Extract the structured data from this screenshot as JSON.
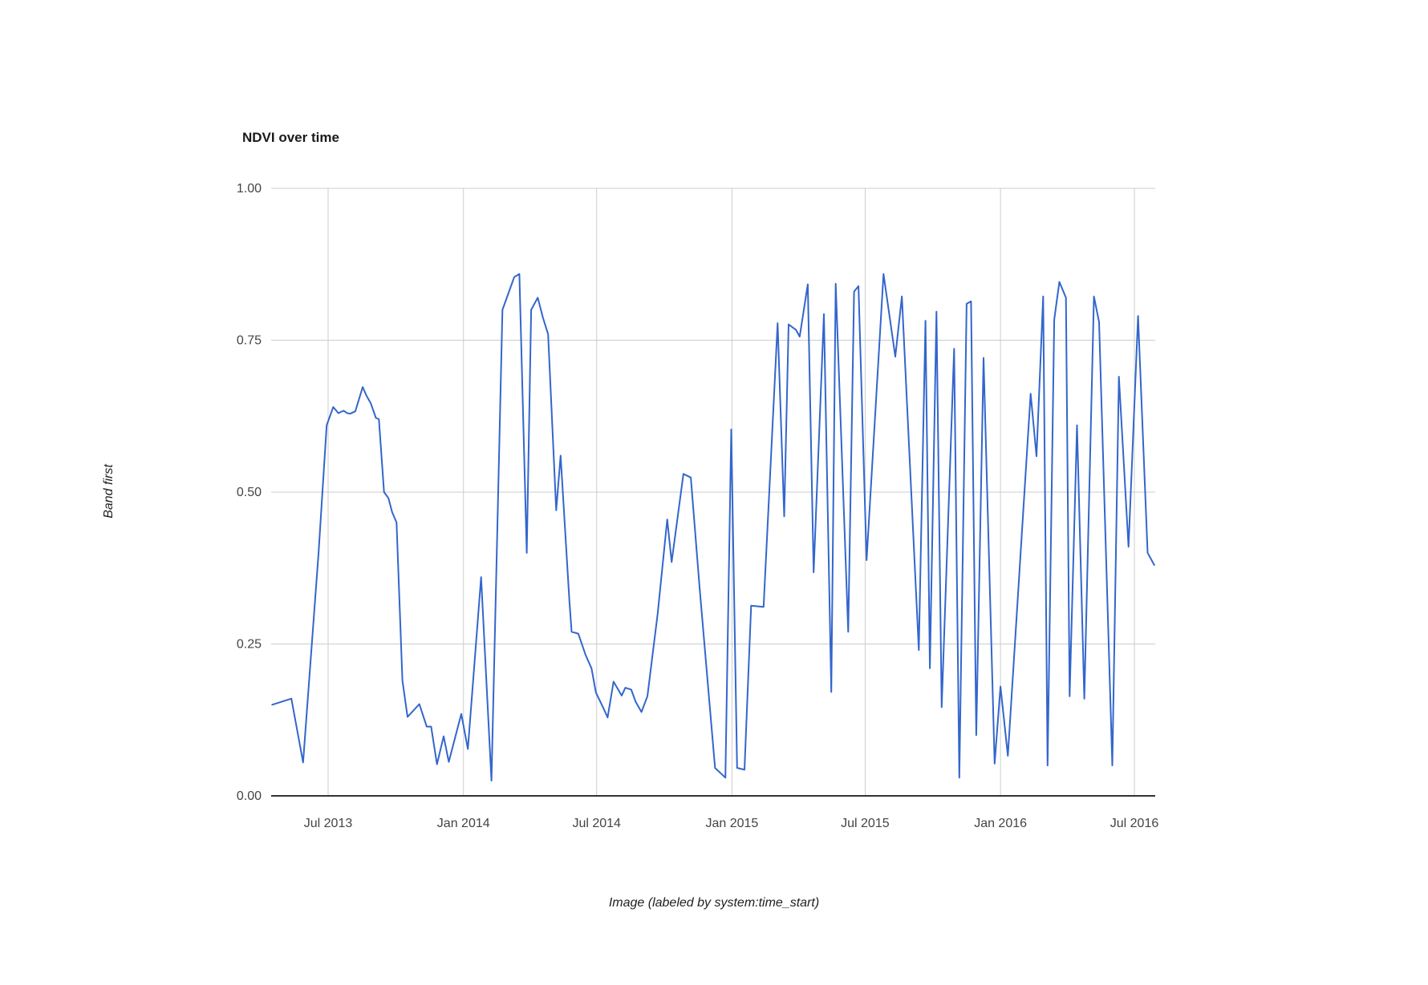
{
  "chart": {
    "title": "NDVI over time",
    "y_axis_title": "Band first",
    "x_axis_title": "Image (labeled by system:time_start)",
    "line_color": "#3366cc",
    "gridline_color": "#cccccc",
    "axis_line_color": "#333333",
    "tick_label_color": "#444444"
  },
  "chart_data": {
    "type": "line",
    "title": "NDVI over time",
    "xlabel": "Image (labeled by system:time_start)",
    "ylabel": "Band first",
    "grid": true,
    "legend": "none",
    "ylim": [
      0,
      1
    ],
    "y_ticks": [
      {
        "value": 0.0,
        "label": "0.00"
      },
      {
        "value": 0.25,
        "label": "0.25"
      },
      {
        "value": 0.5,
        "label": "0.50"
      },
      {
        "value": 0.75,
        "label": "0.75"
      },
      {
        "value": 1.0,
        "label": "1.00"
      }
    ],
    "x_ticks": [
      {
        "date": "2013-07-01",
        "label": "Jul 2013"
      },
      {
        "date": "2014-01-01",
        "label": "Jan 2014"
      },
      {
        "date": "2014-07-01",
        "label": "Jul 2014"
      },
      {
        "date": "2015-01-01",
        "label": "Jan 2015"
      },
      {
        "date": "2015-07-01",
        "label": "Jul 2015"
      },
      {
        "date": "2016-01-01",
        "label": "Jan 2016"
      },
      {
        "date": "2016-07-01",
        "label": "Jul 2016"
      }
    ],
    "xlim": [
      "2013-04-15",
      "2016-07-29"
    ],
    "series": [
      {
        "name": "first",
        "color": "#3366cc",
        "points": [
          [
            "2013-04-16",
            0.15
          ],
          [
            "2013-05-12",
            0.16
          ],
          [
            "2013-05-28",
            0.055
          ],
          [
            "2013-06-18",
            0.4
          ],
          [
            "2013-06-29",
            0.61
          ],
          [
            "2013-07-08",
            0.64
          ],
          [
            "2013-07-15",
            0.63
          ],
          [
            "2013-07-22",
            0.634
          ],
          [
            "2013-07-27",
            0.63
          ],
          [
            "2013-07-31",
            0.629
          ],
          [
            "2013-08-07",
            0.633
          ],
          [
            "2013-08-17",
            0.673
          ],
          [
            "2013-08-22",
            0.659
          ],
          [
            "2013-08-28",
            0.646
          ],
          [
            "2013-09-04",
            0.622
          ],
          [
            "2013-09-08",
            0.62
          ],
          [
            "2013-09-15",
            0.5
          ],
          [
            "2013-09-21",
            0.49
          ],
          [
            "2013-09-26",
            0.467
          ],
          [
            "2013-10-02",
            0.45
          ],
          [
            "2013-10-10",
            0.19
          ],
          [
            "2013-10-17",
            0.13
          ],
          [
            "2013-11-02",
            0.151
          ],
          [
            "2013-11-12",
            0.114
          ],
          [
            "2013-11-18",
            0.114
          ],
          [
            "2013-11-26",
            0.052
          ],
          [
            "2013-12-05",
            0.098
          ],
          [
            "2013-12-12",
            0.056
          ],
          [
            "2013-12-29",
            0.135
          ],
          [
            "2014-01-07",
            0.077
          ],
          [
            "2014-01-25",
            0.36
          ],
          [
            "2014-02-08",
            0.025
          ],
          [
            "2014-02-23",
            0.8
          ],
          [
            "2014-03-11",
            0.854
          ],
          [
            "2014-03-18",
            0.859
          ],
          [
            "2014-03-28",
            0.4
          ],
          [
            "2014-04-03",
            0.8
          ],
          [
            "2014-04-12",
            0.82
          ],
          [
            "2014-04-19",
            0.787
          ],
          [
            "2014-04-26",
            0.76
          ],
          [
            "2014-05-07",
            0.47
          ],
          [
            "2014-05-13",
            0.56
          ],
          [
            "2014-05-25",
            0.32
          ],
          [
            "2014-05-28",
            0.27
          ],
          [
            "2014-06-06",
            0.267
          ],
          [
            "2014-06-16",
            0.232
          ],
          [
            "2014-06-24",
            0.21
          ],
          [
            "2014-06-30",
            0.17
          ],
          [
            "2014-07-10",
            0.145
          ],
          [
            "2014-07-16",
            0.129
          ],
          [
            "2014-07-24",
            0.188
          ],
          [
            "2014-08-04",
            0.165
          ],
          [
            "2014-08-09",
            0.178
          ],
          [
            "2014-08-17",
            0.175
          ],
          [
            "2014-08-23",
            0.155
          ],
          [
            "2014-08-31",
            0.138
          ],
          [
            "2014-09-08",
            0.164
          ],
          [
            "2014-09-22",
            0.3
          ],
          [
            "2014-10-05",
            0.455
          ],
          [
            "2014-10-11",
            0.385
          ],
          [
            "2014-10-27",
            0.53
          ],
          [
            "2014-11-06",
            0.524
          ],
          [
            "2014-11-18",
            0.342
          ],
          [
            "2014-12-09",
            0.046
          ],
          [
            "2014-12-23",
            0.03
          ],
          [
            "2014-12-31",
            0.603
          ],
          [
            "2015-01-08",
            0.046
          ],
          [
            "2015-01-18",
            0.043
          ],
          [
            "2015-01-27",
            0.313
          ],
          [
            "2015-02-13",
            0.311
          ],
          [
            "2015-03-04",
            0.778
          ],
          [
            "2015-03-13",
            0.46
          ],
          [
            "2015-03-19",
            0.776
          ],
          [
            "2015-03-29",
            0.767
          ],
          [
            "2015-04-03",
            0.756
          ],
          [
            "2015-04-14",
            0.842
          ],
          [
            "2015-04-22",
            0.368
          ],
          [
            "2015-05-06",
            0.793
          ],
          [
            "2015-05-16",
            0.171
          ],
          [
            "2015-05-22",
            0.843
          ],
          [
            "2015-06-08",
            0.27
          ],
          [
            "2015-06-16",
            0.83
          ],
          [
            "2015-06-22",
            0.839
          ],
          [
            "2015-07-03",
            0.388
          ],
          [
            "2015-07-26",
            0.859
          ],
          [
            "2015-08-11",
            0.723
          ],
          [
            "2015-08-20",
            0.822
          ],
          [
            "2015-09-12",
            0.24
          ],
          [
            "2015-09-21",
            0.782
          ],
          [
            "2015-09-27",
            0.21
          ],
          [
            "2015-10-06",
            0.797
          ],
          [
            "2015-10-13",
            0.146
          ],
          [
            "2015-10-30",
            0.736
          ],
          [
            "2015-11-06",
            0.03
          ],
          [
            "2015-11-16",
            0.81
          ],
          [
            "2015-11-22",
            0.814
          ],
          [
            "2015-11-29",
            0.1
          ],
          [
            "2015-12-09",
            0.721
          ],
          [
            "2015-12-24",
            0.053
          ],
          [
            "2016-01-01",
            0.18
          ],
          [
            "2016-01-11",
            0.066
          ],
          [
            "2016-02-11",
            0.662
          ],
          [
            "2016-02-19",
            0.559
          ],
          [
            "2016-02-28",
            0.822
          ],
          [
            "2016-03-05",
            0.05
          ],
          [
            "2016-03-14",
            0.784
          ],
          [
            "2016-03-21",
            0.846
          ],
          [
            "2016-03-30",
            0.82
          ],
          [
            "2016-04-04",
            0.164
          ],
          [
            "2016-04-14",
            0.61
          ],
          [
            "2016-04-24",
            0.16
          ],
          [
            "2016-05-07",
            0.822
          ],
          [
            "2016-05-14",
            0.78
          ],
          [
            "2016-06-01",
            0.05
          ],
          [
            "2016-06-10",
            0.69
          ],
          [
            "2016-06-23",
            0.41
          ],
          [
            "2016-07-06",
            0.79
          ],
          [
            "2016-07-19",
            0.4
          ],
          [
            "2016-07-28",
            0.38
          ]
        ]
      }
    ]
  }
}
